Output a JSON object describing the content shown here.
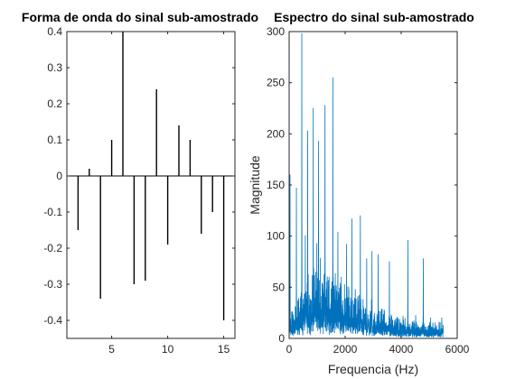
{
  "chart_data": [
    {
      "type": "bar",
      "style": "stem",
      "title": "Forma de onda do sinal sub-amostrado",
      "xlabel": "",
      "ylabel": "",
      "xlim": [
        1,
        16
      ],
      "ylim": [
        -0.45,
        0.4
      ],
      "xticks": [
        5,
        10,
        15
      ],
      "xtick_labels": [
        "5",
        "10",
        "15"
      ],
      "yticks": [
        0.4,
        0.3,
        0.2,
        0.1,
        0,
        -0.1,
        -0.2,
        -0.3,
        -0.4
      ],
      "ytick_labels": [
        "0.4",
        "0.3",
        "0.2",
        "0.1",
        "0",
        "-0.1",
        "-0.2",
        "-0.3",
        "-0.4"
      ],
      "color": "#000000",
      "x": [
        2,
        3,
        4,
        5,
        6,
        7,
        8,
        9,
        10,
        11,
        12,
        13,
        14,
        15
      ],
      "values": [
        -0.15,
        0.02,
        -0.34,
        0.1,
        0.4,
        -0.3,
        -0.29,
        0.24,
        -0.19,
        0.14,
        0.1,
        -0.16,
        -0.1,
        -0.4
      ],
      "grid": false
    },
    {
      "type": "line",
      "title": "Espectro do sinal sub-amostrado",
      "xlabel": "Frequencia (Hz)",
      "ylabel": "Magnitude",
      "xlim": [
        0,
        6000
      ],
      "ylim": [
        0,
        300
      ],
      "xticks": [
        0,
        2000,
        4000,
        6000
      ],
      "xtick_labels": [
        "0",
        "2000",
        "4000",
        "6000"
      ],
      "yticks": [
        0,
        50,
        100,
        150,
        200,
        250,
        300
      ],
      "ytick_labels": [
        "0",
        "50",
        "100",
        "150",
        "200",
        "250",
        "300"
      ],
      "color": "#0072BD",
      "grid": false,
      "peaks": [
        {
          "x": 30,
          "y": 160
        },
        {
          "x": 260,
          "y": 147
        },
        {
          "x": 450,
          "y": 298
        },
        {
          "x": 660,
          "y": 203
        },
        {
          "x": 860,
          "y": 225
        },
        {
          "x": 1050,
          "y": 193
        },
        {
          "x": 1280,
          "y": 228
        },
        {
          "x": 1560,
          "y": 255
        },
        {
          "x": 1740,
          "y": 104
        },
        {
          "x": 2050,
          "y": 92
        },
        {
          "x": 2240,
          "y": 117
        },
        {
          "x": 2540,
          "y": 120
        },
        {
          "x": 2770,
          "y": 78
        },
        {
          "x": 2960,
          "y": 85
        },
        {
          "x": 3180,
          "y": 82
        },
        {
          "x": 3580,
          "y": 75
        },
        {
          "x": 4240,
          "y": 96
        },
        {
          "x": 4790,
          "y": 78
        },
        {
          "x": 5450,
          "y": 20
        }
      ],
      "noise_floor": [
        {
          "x": 0,
          "y": 12
        },
        {
          "x": 1000,
          "y": 38
        },
        {
          "x": 2000,
          "y": 28
        },
        {
          "x": 3000,
          "y": 15
        },
        {
          "x": 4000,
          "y": 10
        },
        {
          "x": 5000,
          "y": 8
        },
        {
          "x": 5500,
          "y": 8
        }
      ],
      "x_max": 5500
    }
  ]
}
